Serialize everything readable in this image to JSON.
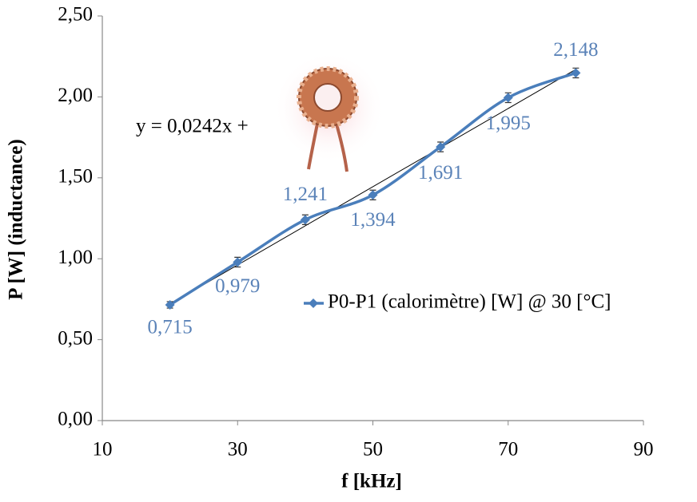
{
  "chart_data": {
    "type": "line",
    "x_label": "f [kHz]",
    "y_label": "P [W] (inductance)",
    "x": [
      20,
      30,
      40,
      50,
      60,
      70,
      80
    ],
    "series": [
      {
        "name": "P0-P1 (calorimètre) [W] @ 30 [°C]",
        "color": "#4a7ebb",
        "values": [
          0.715,
          0.979,
          1.241,
          1.394,
          1.691,
          1.995,
          2.148
        ],
        "value_labels": [
          "0,715",
          "0,979",
          "1,241",
          "1,394",
          "1,691",
          "1,995",
          "2,148"
        ],
        "errors": [
          0.02,
          0.03,
          0.03,
          0.03,
          0.03,
          0.03,
          0.03
        ]
      }
    ],
    "trendline": {
      "label": "y = 0,0242x +",
      "color": "#000000",
      "x": [
        20,
        80
      ],
      "values": [
        0.72,
        2.17
      ]
    },
    "xlim": [
      10,
      90
    ],
    "xticks": [
      10,
      30,
      50,
      70,
      90
    ],
    "ylim": [
      0,
      2.5
    ],
    "yticks": [
      {
        "value": 0,
        "label": "0,00"
      },
      {
        "value": 0.5,
        "label": "0,50"
      },
      {
        "value": 1,
        "label": "1,00"
      },
      {
        "value": 1.5,
        "label": "1,50"
      },
      {
        "value": 2,
        "label": "2,00"
      },
      {
        "value": 2.5,
        "label": "2,50"
      }
    ],
    "legend": "right"
  }
}
